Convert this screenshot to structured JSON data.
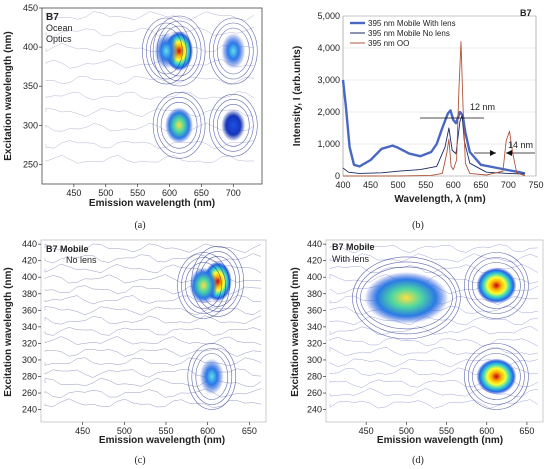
{
  "panels": {
    "a": {
      "tag": "B7",
      "note1": "Ocean",
      "note2": "Optics",
      "ylabel": "Excitation wavelength (nm)",
      "xlabel": "Emission wavelength (nm)",
      "caption": "(a)"
    },
    "b": {
      "tag": "B7",
      "ylabel": "Intensity, I (arb.units)",
      "xlabel": "Wavelength, λ (nm)",
      "caption": "(b)",
      "ann_12": "12 nm",
      "ann_14": "14 nm"
    },
    "c": {
      "tag": "B7 Mobile",
      "note": "No lens",
      "ylabel": "Excitation wavelength (nm)",
      "xlabel": "Emission wavelength (nm)",
      "caption": "(c)"
    },
    "d": {
      "tag": "B7 Mobile",
      "note": "With lens",
      "ylabel": "Excitation wavelength (nm)",
      "xlabel": "Emission wavelength (nm)",
      "caption": "(d)"
    }
  },
  "chart_data": [
    {
      "panel": "a",
      "type": "heatmap",
      "xlabel": "Emission wavelength (nm)",
      "ylabel": "Excitation wavelength (nm)",
      "xticks": [
        450,
        500,
        550,
        600,
        650,
        700
      ],
      "yticks": [
        250,
        300,
        350,
        400,
        450
      ],
      "xlim": [
        400,
        745
      ],
      "ylim": [
        225,
        450
      ],
      "hotspots": [
        {
          "em": 615,
          "ex": 395,
          "level": 1.0
        },
        {
          "em": 615,
          "ex": 300,
          "level": 0.55
        },
        {
          "em": 595,
          "ex": 395,
          "level": 0.45
        },
        {
          "em": 700,
          "ex": 395,
          "level": 0.45
        },
        {
          "em": 700,
          "ex": 300,
          "level": 0.2
        }
      ]
    },
    {
      "panel": "b",
      "type": "line",
      "xlabel": "Wavelength, λ (nm)",
      "ylabel": "Intensity, I (arb.units)",
      "xlim": [
        400,
        750
      ],
      "ylim": [
        0,
        5000
      ],
      "xticks": [
        400,
        450,
        500,
        550,
        600,
        650,
        700,
        750
      ],
      "yticks": [
        0,
        1000,
        2000,
        3000,
        4000,
        5000
      ],
      "ytick_labels": [
        "0",
        "1,000",
        "2,000",
        "3,000",
        "4,000",
        "5,000"
      ],
      "legend_position": "top-left",
      "series": [
        {
          "name": "395 nm Mobile With lens",
          "color": "#4a67c4",
          "x": [
            400,
            405,
            412,
            420,
            430,
            450,
            470,
            490,
            500,
            520,
            540,
            560,
            570,
            580,
            590,
            595,
            600,
            605,
            612,
            617,
            622,
            630,
            650,
            680,
            700,
            720,
            730
          ],
          "y": [
            3000,
            2200,
            900,
            350,
            300,
            500,
            850,
            950,
            880,
            700,
            620,
            750,
            1000,
            1500,
            1950,
            2050,
            1750,
            1650,
            2000,
            1900,
            1350,
            750,
            350,
            250,
            180,
            120,
            80
          ]
        },
        {
          "name": "395 nm Mobile No lens",
          "color": "#1a2a66",
          "x": [
            400,
            410,
            430,
            470,
            500,
            540,
            570,
            585,
            592,
            598,
            605,
            612,
            616,
            620,
            630,
            660,
            700,
            730
          ],
          "y": [
            250,
            120,
            80,
            100,
            150,
            200,
            300,
            900,
            1500,
            800,
            700,
            1700,
            1900,
            1100,
            400,
            120,
            80,
            60
          ]
        },
        {
          "name": "395 nm OO",
          "color": "#b0543a",
          "x": [
            400,
            500,
            560,
            580,
            588,
            592,
            596,
            600,
            606,
            610,
            614,
            618,
            622,
            630,
            660,
            690,
            696,
            702,
            708,
            715,
            730
          ],
          "y": [
            0,
            0,
            20,
            80,
            700,
            1150,
            300,
            200,
            500,
            2600,
            4200,
            2000,
            400,
            80,
            30,
            150,
            1100,
            1400,
            700,
            100,
            10
          ]
        }
      ],
      "annotations": [
        "12 nm",
        "14 nm"
      ]
    },
    {
      "panel": "c",
      "type": "heatmap",
      "xlabel": "Emission wavelength (nm)",
      "ylabel": "Excitation wavelength (nm)",
      "xticks": [
        450,
        500,
        550,
        600,
        650
      ],
      "yticks": [
        240,
        260,
        280,
        300,
        320,
        340,
        360,
        380,
        400,
        420,
        440
      ],
      "xlim": [
        400,
        670
      ],
      "ylim": [
        225,
        445
      ],
      "hotspots": [
        {
          "em": 612,
          "ex": 395,
          "level": 1.0
        },
        {
          "em": 595,
          "ex": 390,
          "level": 0.5
        },
        {
          "em": 605,
          "ex": 280,
          "level": 0.45
        }
      ]
    },
    {
      "panel": "d",
      "type": "heatmap",
      "xlabel": "Emission wavelength (nm)",
      "ylabel": "Excitation wavelength (nm)",
      "xticks": [
        450,
        500,
        550,
        600,
        650
      ],
      "yticks": [
        240,
        260,
        280,
        300,
        320,
        340,
        360,
        380,
        400,
        420,
        440
      ],
      "xlim": [
        400,
        670
      ],
      "ylim": [
        225,
        445
      ],
      "hotspots": [
        {
          "em": 612,
          "ex": 390,
          "level": 1.0
        },
        {
          "em": 612,
          "ex": 280,
          "level": 1.0
        },
        {
          "em": 500,
          "ex": 375,
          "level": 0.6
        }
      ]
    }
  ]
}
